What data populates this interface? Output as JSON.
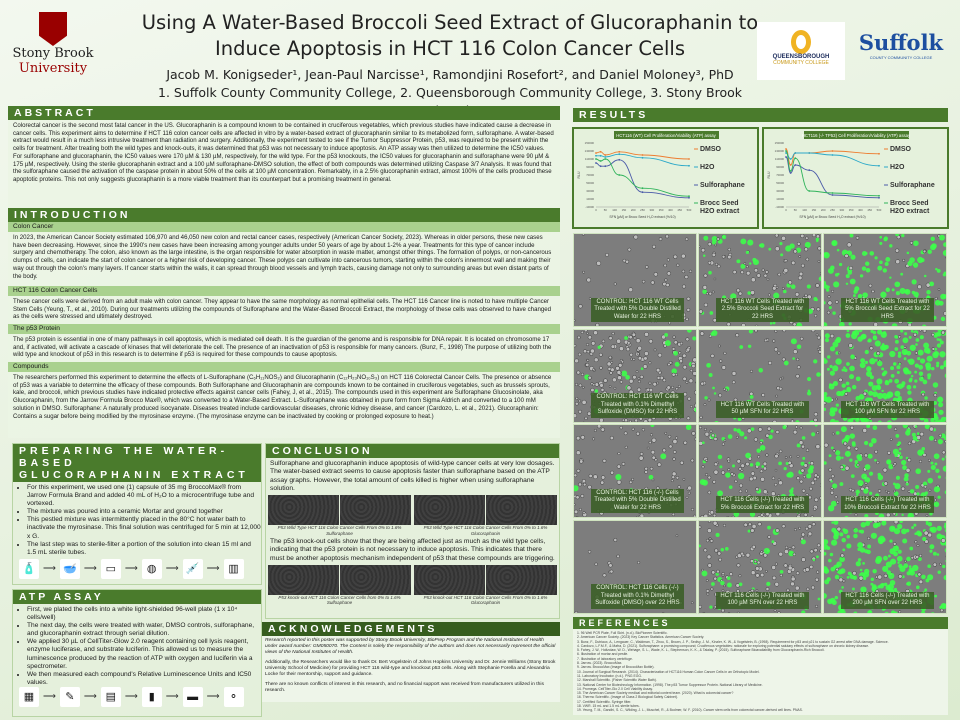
{
  "header": {
    "title_line1": "Using A Water-Based Broccoli Seed Extract of Glucoraphanin to",
    "title_line2": "Induce Apoptosis in HCT 116 Colon Cancer Cells",
    "authors": "Jacob M. Konigseder¹, Jean-Paul Narcisse¹, Ramondjini Rosefort², and Daniel Moloney³, PhD",
    "affiliations": "1. Suffolk County Community College, 2. Queensborough Community College, 3. Stony Brook University",
    "logos": {
      "left_line1": "Stony Brook",
      "left_line2": "University",
      "middle_line1": "QUEENSBOROUGH",
      "middle_line2": "COMMUNITY COLLEGE",
      "right_line1": "Suffolk",
      "right_line2": "COUNTY COMMUNITY COLLEGE"
    }
  },
  "colors": {
    "header_green": "#4a7b2c",
    "subheader_green": "#a9d18e",
    "sbu_red": "#990000",
    "dmso": "#ed7d31",
    "h2o": "#2aa8c8",
    "sulforaphane": "#4a5aa8",
    "brocc": "#2fb35a"
  },
  "abstract": {
    "heading": "ABSTRACT",
    "text": "Colorectal cancer is the second most fatal cancer in the US. Glucoraphanin is a compound known to be contained in cruciferous vegetables, which previous studies have indicated cause a decrease in cancer cells. This experiment aims to determine if HCT 116 colon cancer cells are affected in vitro by a water-based extract of glucoraphanin similar to its metabolized form, sulforaphane. A water-based extract would result in a much less intrusive treatment than radiation and surgery. Additionally, the experiment tested to see if the Tumor Suppressor Protein, p53, was required to be present within the cells for treatment. After treating both the wild types and knock-outs, it was determined that p53 was not necessary to induce apoptosis. An ATP assay was then utilized to determine the IC50 values. For sulforaphane and glucoraphanin, the IC50 values were 170 µM & 130 µM, respectively, for the wild type. For the p53 knockouts, the IC50 values for glucoraphanin and sulforaphane were 90 µM & 175 µM, respectively. Using the sterile glucoraphanin extract and a 100 µM sulforaphane-DMSO solution, the effect of both compounds was determined utilizing Caspase 3/7 Analysis. It was found that the sulforaphane caused the activation of the caspase protein in about 50% of the cells at 100 µM concentration. Remarkably, in a 2.5% glucoraphanin extract, almost 100% of the cells produced these apoptotic proteins. This not only suggests glucoraphanin is a more viable treatment than its counterpart but a promising treatment in general."
  },
  "introduction": {
    "heading": "INTRODUCTION",
    "sections": [
      {
        "title": "Colon Cancer",
        "text": "In 2023, the American Cancer Society estimated 106,970 and 46,050 new colon and rectal cancer cases, respectively (American Cancer Society, 2023). Whereas in older persons, these new cases have been decreasing. However, since the 1990's new cases have been increasing among younger adults under 50 years of age by about 1-2% a year. Treatments for this type of cancer include surgery and chemotherapy. The colon, also known as the large intestine, is the organ responsible for water absorption in waste matter, amongst other things. The formation of polyps, or non-cancerous clumps of cells, can indicate the start of colon cancer or a higher risk of developing cancer. These polyps can cultivate into cancerous tumors, starting within the colon's innermost wall and making their way out through the colon's many layers. If cancer starts within the walls, it can spread through blood vessels and lymph tracts, causing damage not only to surrounding areas but even distant parts of the body."
      },
      {
        "title": "HCT 116 Colon Cancer Cells",
        "text": "These cancer cells were derived from an adult male with colon cancer. They appear to have the same morphology as normal epithelial cells. The HCT 116 Cancer line is noted to have multiple Cancer Stem Cells (Yeung, T., et al., 2010). During our treatments utilizing the compounds of Sulforaphane and the Water-Based Broccoli Extract, the morphology of these cells was observed to have changed as the cells were stressed and ultimately destroyed."
      },
      {
        "title": "The p53 Protein",
        "text": "The p53 protein is essential in one of many pathways in cell apoptosis, which is mediated cell death. It is the guardian of the genome and is responsible for DNA repair. It is located on chromosome 17 and, if activated, will activate a cascade of kinases that will deteriorate the cell. The presence of an inactivation of p53 is responsible for many cancers. (Bunz, F., 1998) The purpose of utilizing both the wild type and knockout of p53 in this research is to determine if p53 is required for these compounds to cause apoptosis."
      },
      {
        "title": "Compounds",
        "text": "The researchers performed this experiment to determine the effects of L-Sulforaphane (C₆H₁₁NOS₂) and Glucoraphanin (C₁₂H₂₃NO₁₀S₃) on HCT 116 Colorectal Cancer Cells. The presence or absence of p53 was a variable to determine the efficacy of these compounds. Both Sulforaphane and Glucoraphanin are compounds known to be contained in cruciferous vegetables, such as brussels sprouts, kale, and broccoli, which previous studies have indicated protective effects against cancer cells (Fahey, J, et al., 2015). The compounds used in this experiment are Sulforaphane Glucosinolate, aka Glucoraphanin, from the Jarrow Formula Brocco Max®, which was converted to a Water-Based Extract. L-Sulforaphane was obtained in pure form from Sigma Aldrich and converted to a 100 mM solution in DMSO. Sulforaphane: A naturally produced isocyanate. Diseases treated include cardiovascular diseases, chronic kidney disease, and cancer (Cardozo, L. et al., 2021). Glucoraphanin: Contains a sugar before being modified by the myrosinase enzyme. (The myrosinase enzyme can be inactivated by cooking or prolonged exposure to heat.)"
      }
    ]
  },
  "preparing": {
    "heading_line1": "PREPARING THE WATER-BASED",
    "heading_line2": "GLUCORAPHANIN EXTRACT",
    "bullets": [
      "For this experiment, we used one (1) capsule of 35 mg BroccoMax® from Jarrow Formula Brand and added 40 mL of H₂O to a microcentrifuge tube and vortexed.",
      "The mixture was poured into a ceramic Mortar and ground together",
      "This pestled mixture was intermittently placed in the 80°C hot water bath to inactivate the myrosinase. This final solution was centrifuged for 5 min at 12,000 x G.",
      "The last step was to sterile-filter a portion of the solution into clean 15 ml and 1.5 mL sterile tubes."
    ],
    "steps": [
      "capsule-bottle-icon",
      "mortar-pestle-icon",
      "water-bath-icon",
      "centrifuge-icon",
      "syringe-filter-icon",
      "biosafety-cabinet-icon"
    ]
  },
  "atp": {
    "heading": "ATP ASSAY",
    "bullets": [
      "First, we plated the cells into a white light-shielded 96-well plate (1 x 10⁴ cells/well)",
      "The next day, the cells were treated with water, DMSO controls, sulforaphane, and glucoraphanin extract through serial dilution.",
      "We applied 30 µL of CellTiter-Glow 2.0 reagent containing cell lysis reagent, enzyme luciferase, and substrate luciferin. This allowed us to measure the luminescence produced by the reaction of ATP with oxygen and luciferin via a spectrometer.",
      "We then measured each compound's Relative Luminescence Units and IC50 values."
    ],
    "steps": [
      "well-plate-icon",
      "pipette-icon",
      "incubator-icon",
      "reagent-bottle-icon",
      "spectrometer-icon",
      "reaction-diagram-icon"
    ]
  },
  "conclusion": {
    "heading": "CONCLUSION",
    "text1": "Sulforaphane and glucoraphanin induce apoptosis of wild-type cancer cells at very low dosages. The water-based extract seems to cause apoptosis faster than sulforaphane based on the ATP assay graphs. However, the total amount of cells killed is higher when using sulforaphane solution.",
    "caption1": "P53 Wild Type HCT 116 Colon Cancer Cells From 0% to 1.6% Sulforaphane",
    "caption2": "P53 Wild Type HCT 116 Colon Cancer Cells From 0% to 1.6% Glucoraphanin",
    "text2": "The p53 knock-out cells show that they are being affected just as much as the wild type cells, indicating that the p53 protein is not necessary to induce apoptosis. This indicates that there must be another apoptosis mechanism independent of p53 that these compounds are triggering.",
    "caption3": "P53 knock-out HCT 116 Colon Cancer Cells from 0% to 1.6% Sulfoaphane",
    "caption4": "P53 knock-out HCT 116 Colon Cancer Cells From 0% to 1.6% Glucoraphanin"
  },
  "acknowledgements": {
    "heading": "ACKNOWLEDGEMENTS",
    "p1": "Research reported in this poster was supported by Stony Brook University, BioPrep Program and the National Institutes of Health under award number: GM050070. The Content is solely the responsibility of the authors and does not necessarily represent the official views of the National Institutes of Health.",
    "p2": "Additionally, the Researchers would like to thank Dr. Bert Vogelstein of Johns Hopkins University and Dr. Jennie Williams (Stony Brook University School of Medicine) for providing HCT 116 wild-type and knockout p53 cells. Along with Stephanie Forella and Alexandria Locke for their mentorship, support and guidance.",
    "p3": "There are no known conflicts of interest in this research, and no financial support was received from manufacturers utilized in this research."
  },
  "results": {
    "heading": "RESULTS",
    "micrographs": [
      "CONTROL: HCT 116 WT Cells Treated with 5% Double Distilled Water for 22 HRS",
      "HCT 116 WT Cells Treated with 2.5% Broccoli Seed Extract for 22 HRS",
      "HCT 116 WT Cells Treated with 5% Broccoli Seed Extract for 22 HRS",
      "CONTROL: HCT 116 WT Cells Treated with 0.1% Dimethyl Sulfoxide (DMSO) for 22 HRS",
      "HCT 116 WT Cells Treated with 50 µM SFN for 22 HRS",
      "HCT 116 WT Cells Treated with 100 µM SFN for 22 HRS",
      "CONTROL: HCT 116 (-/-) Cells Treated with 5% Double Distilled Water for 22 HRS",
      "HCT 116 Cells (-/-) Treated with 5% Broccoli Extract for 22 HRS",
      "HCT 116 Cells (-/-) Treated with 10% Broccoli Extract for 22 HRS",
      "CONTROL: HCT 116 Cells (-/-) Treated with 0.1% Dimethyl Sulfoxide (DMSO) over 22 HRS",
      "HCT 116 Cells (-/-) Treated with 100 µM SFN over 22 HRS",
      "HCT 116 Cells (-/-) Treated with 200 µM SFN over 22 HRS"
    ]
  },
  "references": {
    "heading": "REFERENCES",
    "items": [
      "1. 96 Well PCR Plate, Full Skirt. (n.d.). BioPioneer Scientific.",
      "2. American Cancer Society. (2023) Key Cancer Statistics. American Cancer Society.",
      "3. Bunz, F., Dutriaux, A., Lengauer, C., Waldman, T., Zhou, S., Brown, J. P., Sedivy, J. M., Kinzler, K. W., & Vogelstein, B. (1998). Requirement for p53 and p21 to sustain G2 arrest after DNA damage. Science.",
      "4. Cardozo, L.F.M.F., & Mafra, D. (2021). Sulforaphane: a promising compound; Cruciferous vegetables: rationale for exploring potential salutary effects of sulforaphane on chronic kidney disease.",
      "5. Fahey, J. W., Holtzclaw, W. D., Wehage, S. L., Wade, K. L., Stephenson, K. K., & Talalay, P. (2015). Sulforaphane Bioavailability from Glucoraphanin-Rich Broccoli.",
      "6. Illustration of mortar and pestle.",
      "7. Illustration of laboratory centrifuge.",
      "8. Jarrow. (2023). BroccoMax.",
      "9. Jarrow. BroccoMax (Image of BroccoMax Bottle).",
      "10. Journal of Surgical Research. (2014). Characterization of HCT116 Human Colon Cancer Cells in an Orthotopic Model.",
      "11. Laboratory Incubator. (n.d.). PNG EGG.",
      "12. Marshall Scientific. (Fisher Scientific Water Bath).",
      "13. National Center for Biotechnology Information. (1998). The p53 Tumor Suppressor Protein. National Library of Medicine.",
      "14. Promega. CellTiter-Glo 2.0 Cell Viability Assay.",
      "15. The American Cancer Society medical and editorial content team. (2020). What is colorectal cancer?",
      "16. Thermo Scientific. (Image of Class 2 Biological Safety Cabinet).",
      "17. Certified Scientific. Syringe filter.",
      "18. VWR. 15 mL and 1.5 mL sterile tubes.",
      "19. Yeung, T. M., Gandhi, S. C., Wilding, J. L., Muschel, R., & Bodmer, W. F. (2010). Cancer stem cells from colorectal cancer-derived cell lines. PNAS."
    ]
  },
  "chart_data": [
    {
      "type": "line",
      "title": "HCT116 (WT) Cell Proliferation/Viability (ATP) assay",
      "xlabel": "SFN [µM] or Brocc Seed H₂O extract (%/10)",
      "ylabel": "RLU",
      "xlim": [
        0,
        500
      ],
      "ylim": [
        -10000,
        150000
      ],
      "xticks": [
        0,
        50,
        100,
        150,
        200,
        250,
        300,
        350,
        400,
        450,
        500
      ],
      "yticks": [
        -10000,
        10000,
        30000,
        50000,
        70000,
        90000,
        110000,
        130000,
        150000
      ],
      "legend": "right",
      "grid": false,
      "x": [
        0,
        25,
        50,
        125,
        250,
        500
      ],
      "series": [
        {
          "name": "DMSO",
          "color": "#ed7d31",
          "values": [
            125000,
            128000,
            120000,
            128000,
            120000,
            110000
          ]
        },
        {
          "name": "H2O",
          "color": "#2aa8c8",
          "values": [
            118000,
            118000,
            115000,
            122000,
            113000,
            93000
          ]
        },
        {
          "name": "Sulforaphane",
          "color": "#4a5aa8",
          "values": [
            100000,
            92000,
            92000,
            108000,
            27000,
            13000
          ]
        },
        {
          "name": "Brocc Seed H2O extract",
          "color": "#2fb35a",
          "values": [
            110000,
            105000,
            110000,
            70000,
            37000,
            17000
          ]
        }
      ]
    },
    {
      "type": "line",
      "title": "HCT116 (-/- TP53) Cell Proliferation/Viability (ATP) assay",
      "xlabel": "SFN [µM] or Brocc Seed H₂O extract (%/10)",
      "ylabel": "RLU",
      "xlim": [
        0,
        500
      ],
      "ylim": [
        -10000,
        150000
      ],
      "xticks": [
        0,
        50,
        100,
        150,
        200,
        250,
        300,
        350,
        400,
        450,
        500
      ],
      "yticks": [
        -10000,
        10000,
        30000,
        50000,
        70000,
        90000,
        110000,
        130000,
        150000
      ],
      "legend": "right",
      "grid": false,
      "x": [
        0,
        25,
        50,
        125,
        250,
        500
      ],
      "series": [
        {
          "name": "DMSO",
          "color": "#ed7d31",
          "values": [
            135000,
            95000,
            125000,
            125000,
            130000,
            123000
          ]
        },
        {
          "name": "H2O",
          "color": "#2aa8c8",
          "values": [
            125000,
            110000,
            125000,
            125000,
            120000,
            93000
          ]
        },
        {
          "name": "Sulforaphane",
          "color": "#4a5aa8",
          "values": [
            115000,
            75000,
            95000,
            82000,
            20000,
            13000
          ]
        },
        {
          "name": "Brocc Seed H2O extract",
          "color": "#2fb35a",
          "values": [
            130000,
            80000,
            112000,
            30000,
            25000,
            18000
          ]
        }
      ]
    }
  ]
}
